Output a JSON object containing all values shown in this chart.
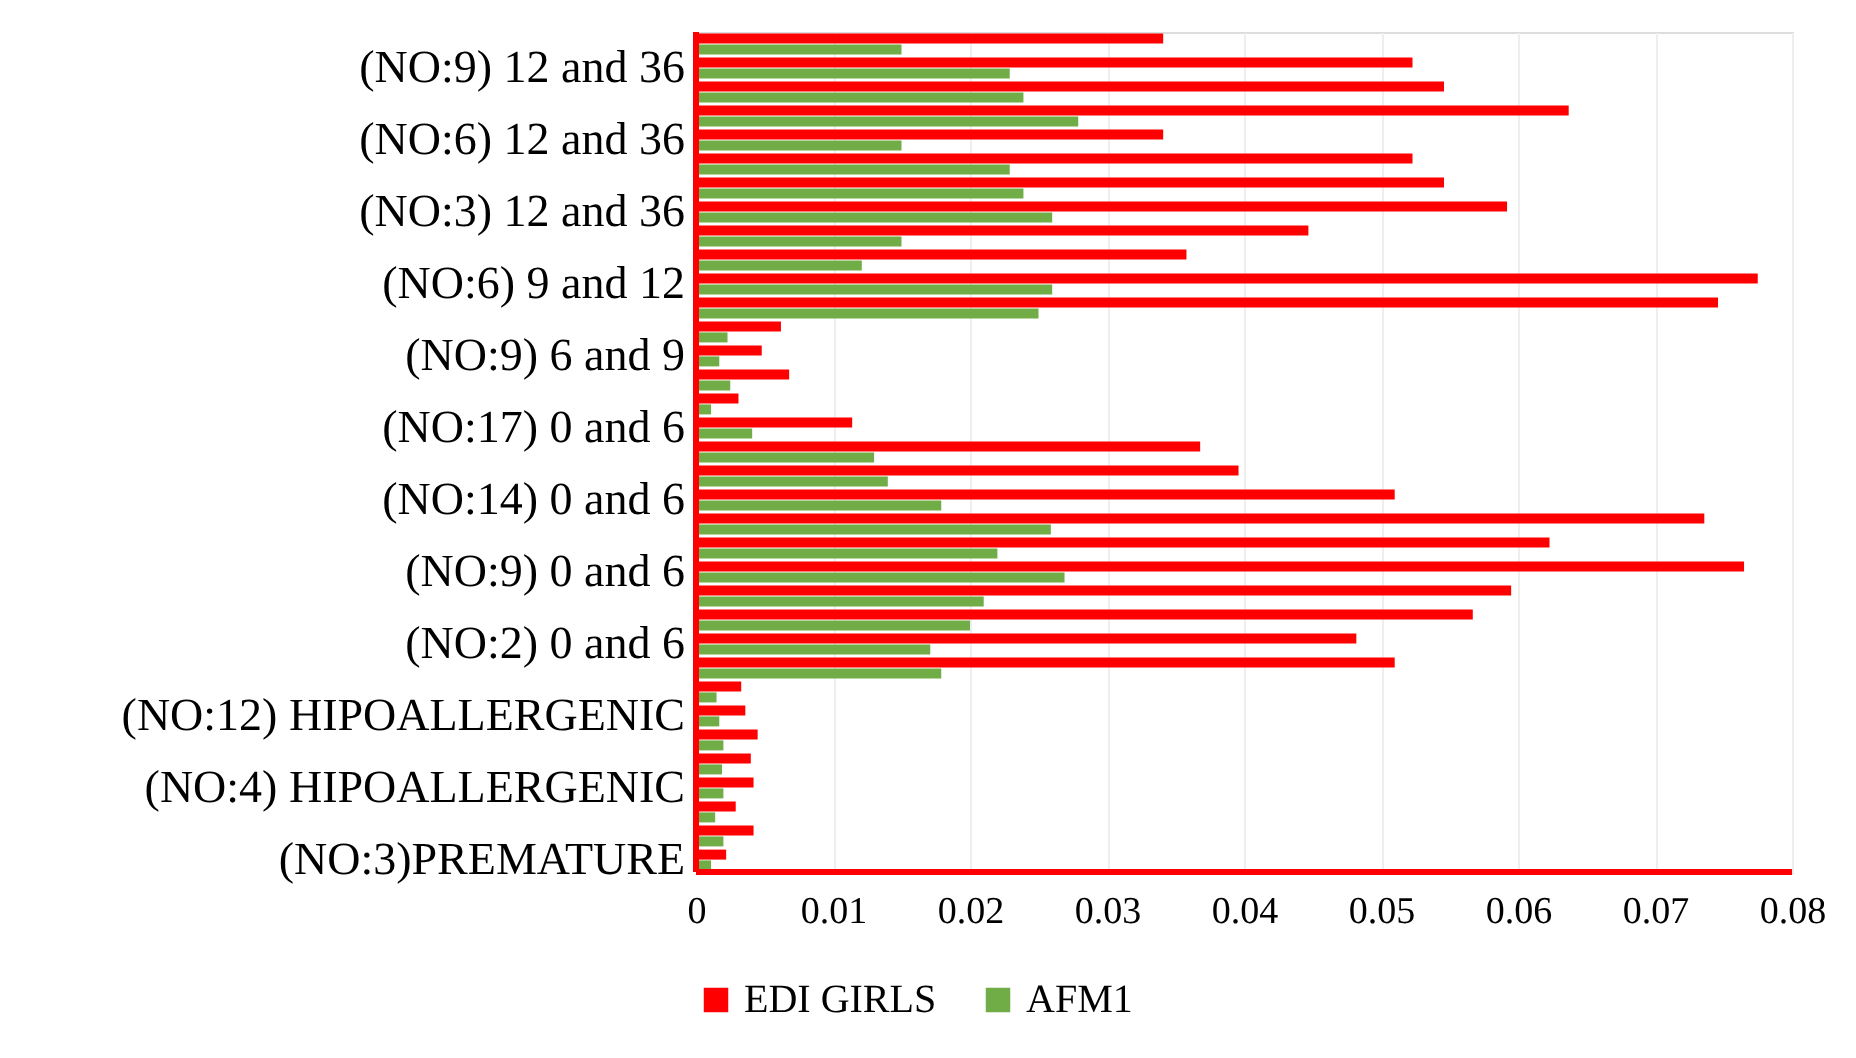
{
  "chart_data": {
    "type": "bar",
    "orientation": "horizontal",
    "categories": [
      null,
      "(NO:9) 12 and 36",
      null,
      null,
      "(NO:6) 12 and 36",
      null,
      null,
      "(NO:3) 12 and 36",
      null,
      null,
      "(NO:6) 9 and 12",
      null,
      null,
      "(NO:9) 6 and 9",
      null,
      null,
      "(NO:17) 0 and 6",
      null,
      null,
      "(NO:14) 0 and 6",
      null,
      null,
      "(NO:9) 0 and 6",
      null,
      null,
      "(NO:2) 0 and 6",
      null,
      null,
      "(NO:12) HIPOALLERGENIC",
      null,
      null,
      "(NO:4) HIPOALLERGENIC",
      null,
      null,
      "(NO:3)PREMATURE"
    ],
    "series": [
      {
        "name": "EDI GIRLS",
        "color": "#ff0000",
        "values": [
          0.0341,
          0.0523,
          0.0546,
          0.0637,
          0.0341,
          0.0523,
          0.0546,
          0.0592,
          0.0447,
          0.0358,
          0.0775,
          0.0746,
          0.0062,
          0.0048,
          0.0068,
          0.0031,
          0.0114,
          0.0368,
          0.0396,
          0.051,
          0.0736,
          0.0623,
          0.0765,
          0.0595,
          0.0567,
          0.0482,
          0.051,
          0.0033,
          0.0036,
          0.0045,
          0.004,
          0.0042,
          0.0029,
          0.0042,
          0.0022
        ]
      },
      {
        "name": "AFM1",
        "color": "#70ad47",
        "values": [
          0.015,
          0.0229,
          0.0239,
          0.0279,
          0.015,
          0.0229,
          0.0239,
          0.026,
          0.015,
          0.0121,
          0.026,
          0.025,
          0.0023,
          0.0017,
          0.0025,
          0.0011,
          0.0041,
          0.013,
          0.014,
          0.0179,
          0.0259,
          0.022,
          0.0269,
          0.021,
          0.02,
          0.0171,
          0.0179,
          0.0015,
          0.0017,
          0.002,
          0.0019,
          0.002,
          0.0014,
          0.002,
          0.0011
        ]
      }
    ],
    "xlim": [
      0,
      0.08
    ],
    "xticks": [
      0,
      0.01,
      0.02,
      0.03,
      0.04,
      0.05,
      0.06,
      0.07,
      0.08
    ],
    "grid": "x",
    "legend": "bottom"
  }
}
